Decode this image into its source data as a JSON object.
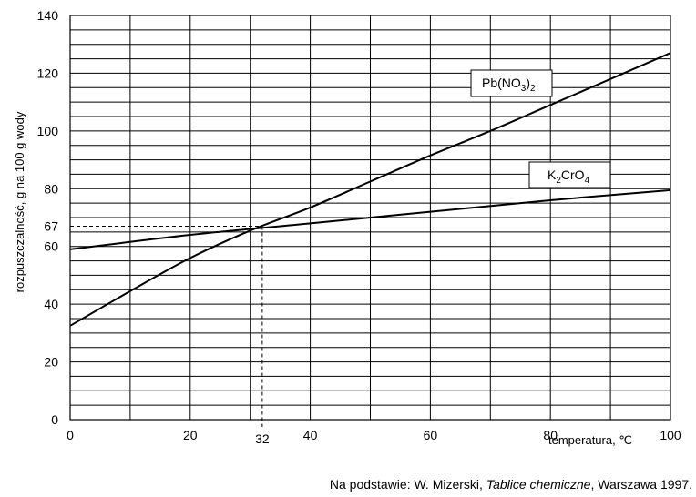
{
  "chart_data": {
    "type": "line",
    "xlabel": "temperatura, ℃",
    "ylabel": "rozpuszczalność, g na 100 g wody",
    "xlim": [
      0,
      100
    ],
    "ylim": [
      0,
      140
    ],
    "x_ticks": [
      "0",
      "20",
      "40",
      "60",
      "80",
      "100"
    ],
    "y_ticks": [
      "0",
      "20",
      "40",
      "60",
      "80",
      "100",
      "120",
      "140"
    ],
    "grid": true,
    "series": [
      {
        "name": "Pb(NO3)2",
        "x": [
          0,
          10,
          20,
          30,
          40,
          50,
          60,
          70,
          80,
          90,
          100
        ],
        "y": [
          32.5,
          44.5,
          56,
          65.5,
          73.5,
          82.5,
          91.5,
          100,
          109,
          118,
          127
        ]
      },
      {
        "name": "K2CrO4",
        "x": [
          0,
          20,
          40,
          60,
          80,
          100
        ],
        "y": [
          59,
          64,
          68,
          72,
          76,
          79.5
        ]
      }
    ],
    "annotations": {
      "intersection_x_label": "32",
      "intersection_y_label": "67",
      "intersection": [
        32,
        67
      ]
    },
    "series_labels": {
      "pb": {
        "base": "Pb(NO",
        "sub1": "3",
        "mid": ")",
        "sub2": "2"
      },
      "k": {
        "base": "K",
        "sub1": "2",
        "mid": "CrO",
        "sub2": "4"
      }
    }
  },
  "source": {
    "prefix": "Na podstawie: W. Mizerski, ",
    "title": "Tablice chemiczne",
    "suffix": ", Warszawa 1997."
  }
}
